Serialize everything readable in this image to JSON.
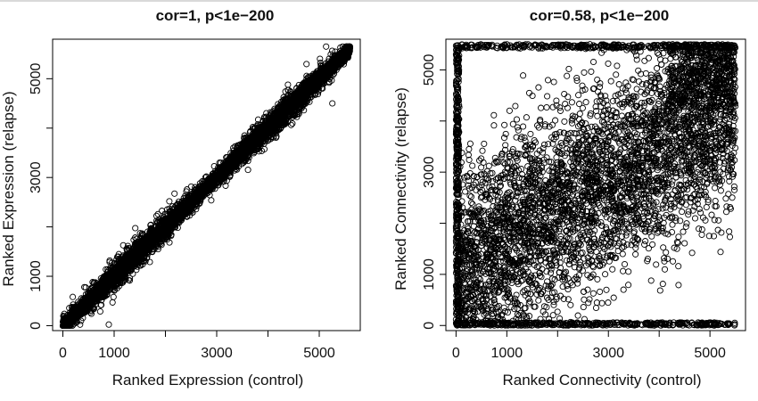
{
  "chart_data": [
    {
      "type": "scatter",
      "title": "cor=1, p<1e−200",
      "xlabel": "Ranked Expression (control)",
      "ylabel": "Ranked Expression (relapse)",
      "xlim": [
        -200,
        5800
      ],
      "ylim": [
        -100,
        5800
      ],
      "x_ticks": [
        0,
        1000,
        2000,
        3000,
        4000,
        5000
      ],
      "x_tick_labels": [
        "0",
        "1000",
        "",
        "3000",
        "",
        "5000"
      ],
      "y_ticks": [
        0,
        1000,
        2000,
        3000,
        4000,
        5000
      ],
      "y_tick_labels": [
        "0",
        "1000",
        "",
        "3000",
        "",
        "5000"
      ],
      "grid": false,
      "legend": "none",
      "n_points": 5600,
      "trend": "points lie tightly along the diagonal y = x from (0,0) to about (5600,5600)",
      "marker": "open circle",
      "color": "#000000"
    },
    {
      "type": "scatter",
      "title": "cor=0.58, p<1e−200",
      "xlabel": "Ranked Connectivity (control)",
      "ylabel": "Ranked Connectivity (relapse)",
      "xlim": [
        -200,
        5700
      ],
      "ylim": [
        -100,
        5600
      ],
      "x_ticks": [
        0,
        1000,
        2000,
        3000,
        4000,
        5000
      ],
      "x_tick_labels": [
        "0",
        "1000",
        "",
        "3000",
        "",
        "5000"
      ],
      "y_ticks": [
        0,
        1000,
        2000,
        3000,
        4000,
        5000
      ],
      "y_tick_labels": [
        "0",
        "1000",
        "",
        "3000",
        "",
        "5000"
      ],
      "grid": false,
      "legend": "none",
      "n_points": 5600,
      "trend": "widely scattered points with a moderate positive association over 0–5500 on both axes, densest along y = 0 and y = 5500 and in the upper-right corner",
      "marker": "open circle",
      "color": "#000000"
    }
  ]
}
